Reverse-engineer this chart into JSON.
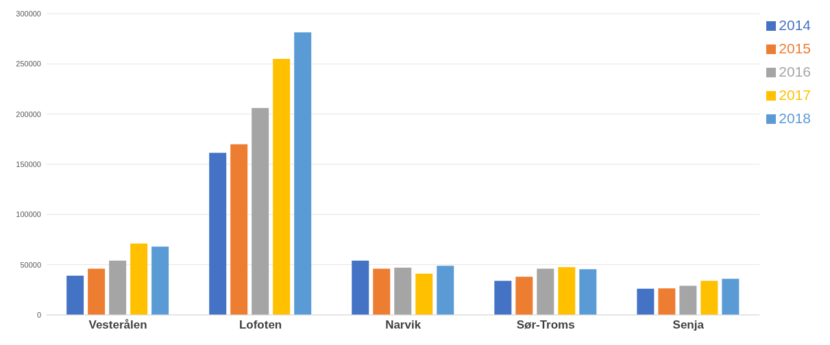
{
  "chart_data": {
    "type": "bar",
    "categories": [
      "Vesterålen",
      "Lofoten",
      "Narvik",
      "Sør-Troms",
      "Senja"
    ],
    "series": [
      {
        "name": "2014",
        "color": "#4472c4",
        "values": [
          39000,
          161500,
          54000,
          34000,
          26000
        ]
      },
      {
        "name": "2015",
        "color": "#ed7d31",
        "values": [
          46000,
          170000,
          46000,
          38000,
          26500
        ]
      },
      {
        "name": "2016",
        "color": "#a5a5a5",
        "values": [
          54000,
          206000,
          47000,
          46000,
          29000
        ]
      },
      {
        "name": "2017",
        "color": "#ffc000",
        "values": [
          71000,
          255000,
          41000,
          47500,
          34000
        ]
      },
      {
        "name": "2018",
        "color": "#5b9bd5",
        "values": [
          68000,
          281500,
          49000,
          45500,
          36000
        ]
      }
    ],
    "ylim": [
      0,
      300000
    ],
    "yticks": [
      0,
      50000,
      100000,
      150000,
      200000,
      250000,
      300000
    ],
    "grid": "y",
    "legend": "top right"
  }
}
